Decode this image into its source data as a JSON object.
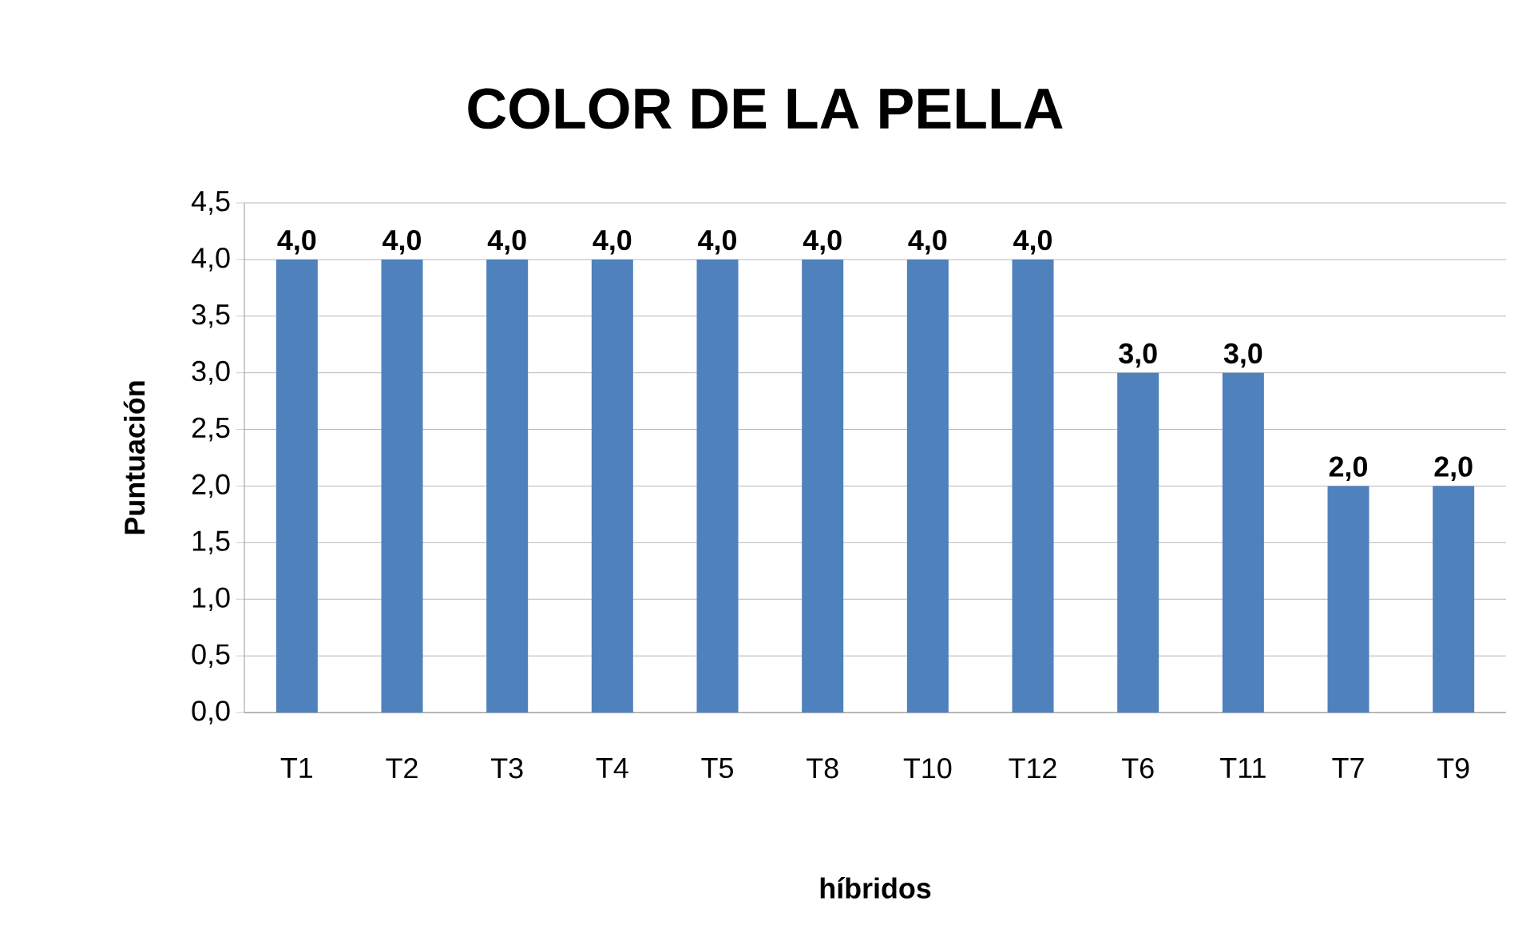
{
  "chart_data": {
    "type": "bar",
    "title": "COLOR DE LA PELLA",
    "xlabel": "híbridos",
    "ylabel": "Puntuación",
    "categories": [
      "T1",
      "T2",
      "T3",
      "T4",
      "T5",
      "T8",
      "T10",
      "T12",
      "T6",
      "T11",
      "T7",
      "T9"
    ],
    "values": [
      4,
      4,
      4,
      4,
      4,
      4,
      4,
      4,
      3,
      3,
      2,
      2
    ],
    "value_labels": [
      "4,0",
      "4,0",
      "4,0",
      "4,0",
      "4,0",
      "4,0",
      "4,0",
      "4,0",
      "3,0",
      "3,0",
      "2,0",
      "2,0"
    ],
    "color": "#4f81bd",
    "ylim": [
      0,
      4.5
    ],
    "yticks": [
      {
        "value": 0,
        "label": "0,0"
      },
      {
        "value": 0.5,
        "label": "0,5"
      },
      {
        "value": 1,
        "label": "1,0"
      },
      {
        "value": 1.5,
        "label": "1,5"
      },
      {
        "value": 2,
        "label": "2,0"
      },
      {
        "value": 2.5,
        "label": "2,5"
      },
      {
        "value": 3,
        "label": "3,0"
      },
      {
        "value": 3.5,
        "label": "3,5"
      },
      {
        "value": 4,
        "label": "4,0"
      },
      {
        "value": 4.5,
        "label": "4,5"
      }
    ],
    "grid": "y"
  }
}
